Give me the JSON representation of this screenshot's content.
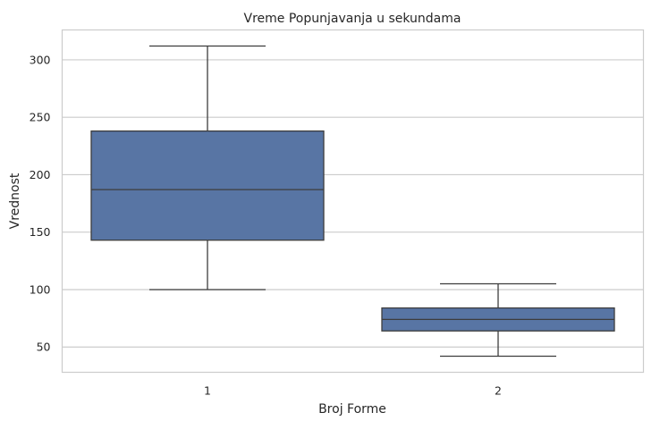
{
  "chart_data": {
    "type": "box",
    "title": "Vreme Popunjavanja u sekundama",
    "xlabel": "Broj Forme",
    "ylabel": "Vrednost",
    "categories": [
      "1",
      "2"
    ],
    "boxes": [
      {
        "category": "1",
        "whisker_low": 100,
        "q1": 143,
        "median": 187,
        "q3": 238,
        "whisker_high": 312
      },
      {
        "category": "2",
        "whisker_low": 42,
        "q1": 64,
        "median": 74,
        "q3": 84,
        "whisker_high": 105
      }
    ],
    "yticks": [
      50,
      100,
      150,
      200,
      250,
      300
    ],
    "ylim": [
      28,
      326
    ],
    "grid": "horizontal",
    "colors": {
      "box_fill": "#5875a4",
      "line": "#3d3d3d",
      "grid": "#cccccc",
      "frame": "#cccccc"
    }
  }
}
